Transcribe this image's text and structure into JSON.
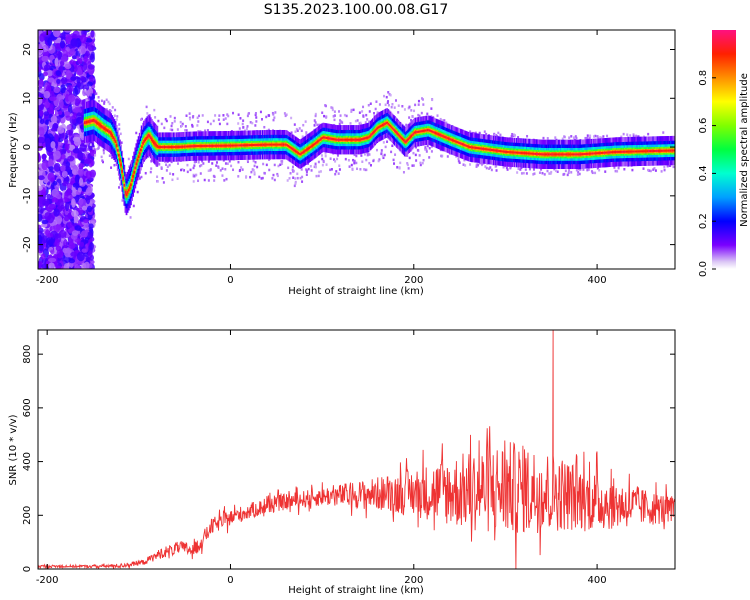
{
  "figure": {
    "title": "S135.2023.100.00.08.G17"
  },
  "chart_data": [
    {
      "type": "heatmap",
      "xlabel": "Height of straight line (km)",
      "ylabel": "Frequency (Hz)",
      "xlim": [
        -210,
        485
      ],
      "ylim": [
        -25,
        24
      ],
      "x_ticks": [
        "-200",
        "0",
        "200",
        "400"
      ],
      "x_tick_values": [
        -200,
        0,
        200,
        400
      ],
      "y_ticks": [
        "20",
        "10",
        "0",
        "-10",
        "-20"
      ],
      "y_tick_values": [
        20,
        10,
        0,
        -10,
        -20
      ],
      "colorbar": {
        "label": "Normalized spectral amplitude",
        "range": [
          0,
          1
        ],
        "ticks": [
          "0.0",
          "0.2",
          "0.4",
          "0.6",
          "0.8"
        ],
        "tick_values": [
          0.0,
          0.2,
          0.4,
          0.6,
          0.8
        ]
      },
      "ridge": {
        "x": [
          -160,
          -150,
          -140,
          -132,
          -126,
          -120,
          -115,
          -110,
          -103,
          -96,
          -90,
          -85,
          -80,
          -60,
          -40,
          0,
          40,
          60,
          75,
          90,
          100,
          115,
          140,
          150,
          160,
          170,
          180,
          190,
          200,
          215,
          240,
          260,
          300,
          340,
          380,
          420,
          485
        ],
        "y": [
          5,
          5.5,
          4,
          3,
          1,
          -4,
          -10,
          -8,
          -3,
          1,
          2.5,
          1,
          0,
          0,
          0.2,
          0.3,
          0.5,
          0.5,
          -1.5,
          0.5,
          2,
          1.5,
          1.5,
          2,
          4,
          5,
          3,
          1,
          3,
          3.5,
          1.5,
          0,
          -1,
          -1.5,
          -1.5,
          -1,
          -0.7
        ]
      },
      "grid": false
    },
    {
      "type": "line",
      "xlabel": "Height of straight line (km)",
      "ylabel": "SNR (10 * v/v)",
      "xlim": [
        -210,
        485
      ],
      "ylim": [
        0,
        890
      ],
      "x_ticks": [
        "-200",
        "0",
        "200",
        "400"
      ],
      "x_tick_values": [
        -200,
        0,
        200,
        400
      ],
      "y_ticks": [
        "0",
        "200",
        "400",
        "600",
        "800"
      ],
      "y_tick_values": [
        0,
        200,
        400,
        600,
        800
      ],
      "color": "#ee3333",
      "envelope": {
        "x": [
          -210,
          -150,
          -120,
          -95,
          -75,
          -55,
          -40,
          -30,
          -20,
          0,
          20,
          40,
          60,
          100,
          150,
          200,
          250,
          300,
          350,
          400,
          450,
          485
        ],
        "mean": [
          10,
          10,
          12,
          25,
          60,
          80,
          70,
          110,
          160,
          190,
          215,
          235,
          250,
          270,
          280,
          285,
          290,
          300,
          290,
          250,
          230,
          220
        ],
        "spread": [
          5,
          5,
          8,
          10,
          20,
          25,
          25,
          30,
          30,
          30,
          30,
          30,
          30,
          35,
          55,
          90,
          140,
          180,
          150,
          110,
          70,
          50
        ]
      },
      "peak": {
        "x": 352,
        "y": 890
      },
      "grid": false
    }
  ]
}
